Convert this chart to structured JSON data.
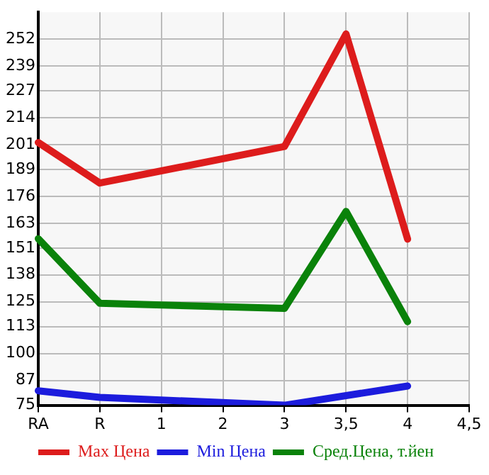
{
  "chart_data": {
    "type": "line",
    "categories": [
      "RA",
      "R",
      "1",
      "2",
      "3",
      "3,5",
      "4",
      "4,5"
    ],
    "series": [
      {
        "name": "Max Цена",
        "color": "#dd1c1c",
        "values": [
          202,
          182.4,
          null,
          null,
          200.1,
          254.5,
          155.3,
          null
        ]
      },
      {
        "name": "Min Цена",
        "color": "#1c1cdd",
        "values": [
          82,
          78.8,
          null,
          null,
          75,
          null,
          84.3,
          null
        ]
      },
      {
        "name": "Сред.Цена, т.йен",
        "color": "#0a820a",
        "values": [
          155.5,
          124.3,
          null,
          null,
          121.8,
          168.7,
          115.4,
          null
        ]
      }
    ],
    "ylim": [
      75,
      265
    ],
    "yticks": [
      75,
      87,
      100,
      113,
      125,
      138,
      151,
      163,
      176,
      189,
      201,
      214,
      227,
      239,
      252
    ],
    "grid": true,
    "legend": "bottom",
    "marker": "none",
    "line_style": "solid"
  }
}
